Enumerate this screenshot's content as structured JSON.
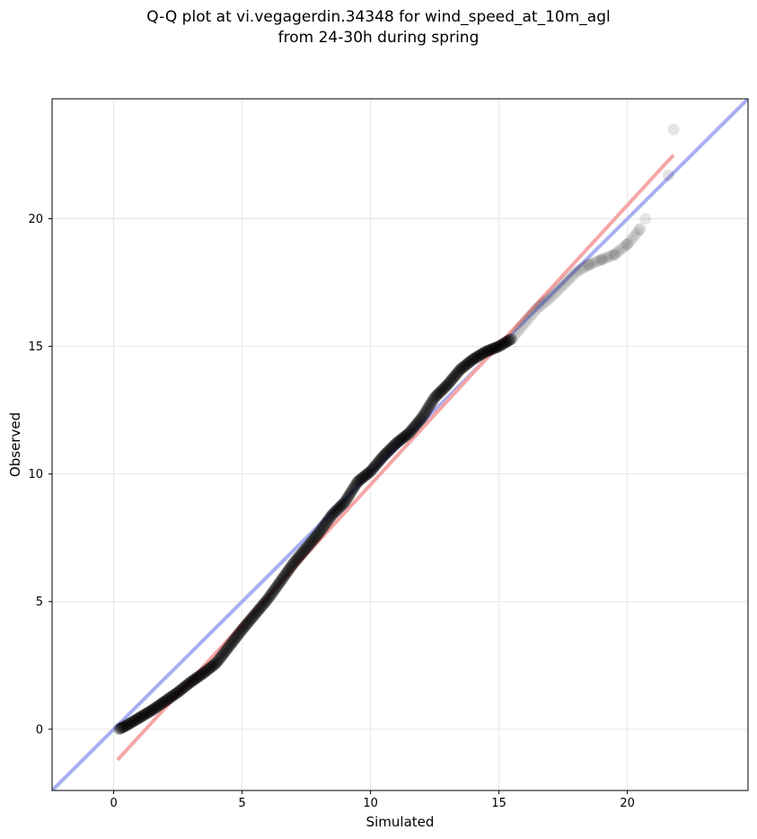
{
  "chart_data": {
    "type": "scatter",
    "title_lines": [
      "Q-Q plot at vi.vegagerdin.34348 for wind_speed_at_10m_agl",
      "from 24-30h during spring"
    ],
    "xlabel": "Simulated",
    "ylabel": "Observed",
    "xlim": [
      -2.4,
      24.7
    ],
    "ylim": [
      -2.4,
      24.7
    ],
    "xticks": [
      0,
      5,
      10,
      15,
      20
    ],
    "yticks": [
      0,
      5,
      10,
      15,
      20
    ],
    "grid": true,
    "legend": "none",
    "quantile_curve": [
      [
        0.2,
        0.0
      ],
      [
        0.5,
        0.15
      ],
      [
        1.0,
        0.45
      ],
      [
        1.5,
        0.75
      ],
      [
        2.0,
        1.1
      ],
      [
        2.5,
        1.45
      ],
      [
        3.0,
        1.85
      ],
      [
        3.5,
        2.2
      ],
      [
        4.0,
        2.6
      ],
      [
        4.5,
        3.25
      ],
      [
        5.0,
        3.9
      ],
      [
        5.5,
        4.5
      ],
      [
        6.0,
        5.1
      ],
      [
        6.5,
        5.8
      ],
      [
        7.0,
        6.5
      ],
      [
        7.5,
        7.1
      ],
      [
        8.0,
        7.7
      ],
      [
        8.5,
        8.4
      ],
      [
        9.0,
        8.9
      ],
      [
        9.5,
        9.7
      ],
      [
        10.0,
        10.1
      ],
      [
        10.5,
        10.7
      ],
      [
        11.0,
        11.2
      ],
      [
        11.5,
        11.6
      ],
      [
        12.0,
        12.2
      ],
      [
        12.5,
        13.0
      ],
      [
        13.0,
        13.5
      ],
      [
        13.5,
        14.1
      ],
      [
        14.0,
        14.5
      ],
      [
        14.5,
        14.8
      ],
      [
        15.0,
        15.0
      ],
      [
        15.5,
        15.3
      ],
      [
        16.0,
        15.9
      ],
      [
        16.5,
        16.5
      ],
      [
        17.0,
        16.9
      ],
      [
        17.5,
        17.4
      ],
      [
        18.0,
        17.9
      ],
      [
        18.5,
        18.2
      ],
      [
        19.0,
        18.4
      ],
      [
        19.5,
        18.6
      ],
      [
        20.0,
        19.0
      ],
      [
        20.5,
        19.6
      ],
      [
        20.7,
        20.0
      ],
      [
        21.6,
        21.7
      ],
      [
        21.8,
        23.5
      ]
    ],
    "colors": {
      "identity_line": "#a8aef0",
      "fit_line": "#f4a6a6",
      "points": "#000000",
      "grid": "#e6e6e6"
    },
    "lines": [
      {
        "role": "identity",
        "x": [
          -2.4,
          24.7
        ],
        "y": [
          -2.4,
          24.7
        ]
      },
      {
        "role": "fit",
        "x": [
          0.15,
          21.8
        ],
        "y": [
          -1.2,
          22.5
        ]
      }
    ]
  }
}
